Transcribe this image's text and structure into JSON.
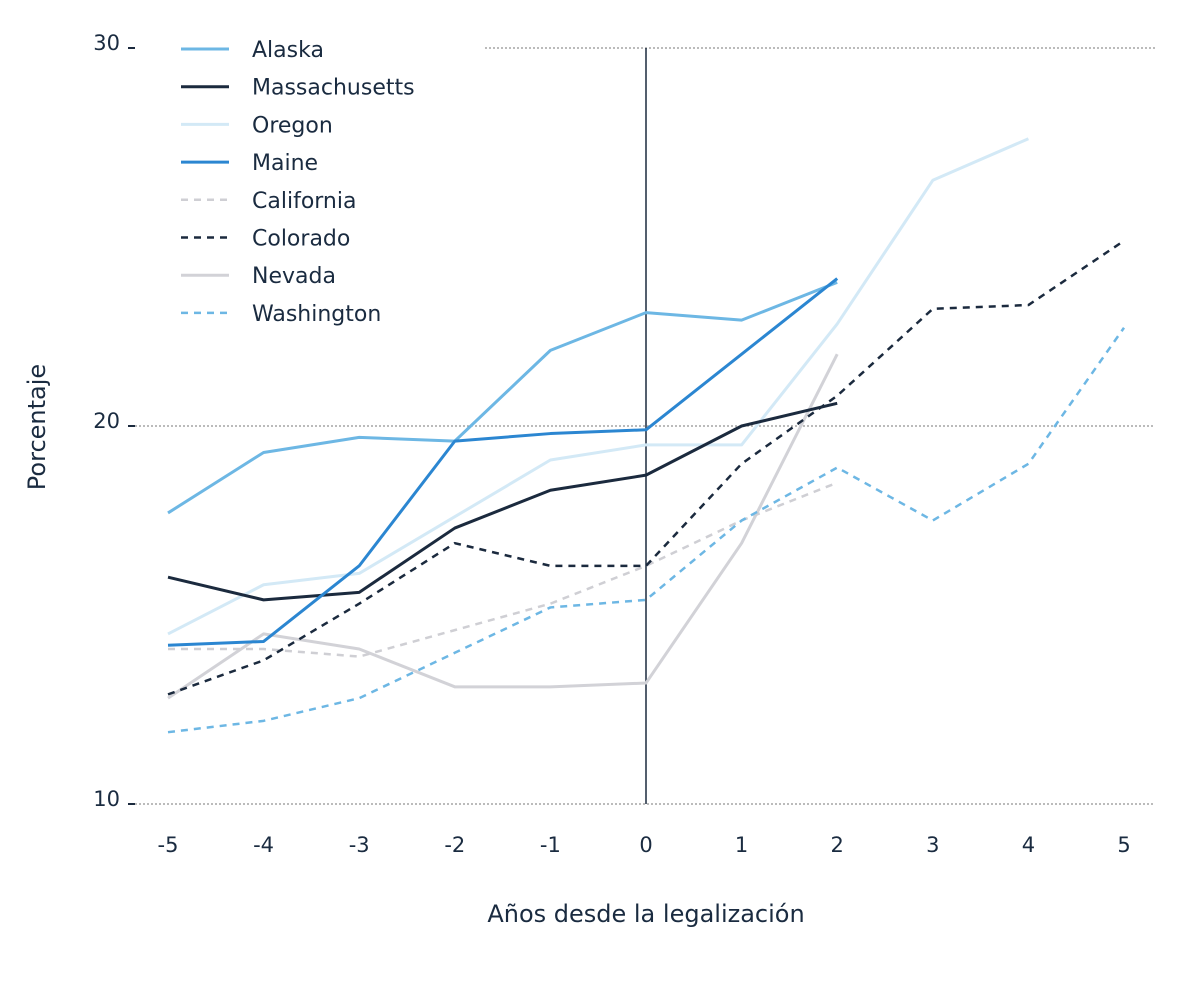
{
  "chart_data": {
    "type": "line",
    "title": "",
    "xlabel": "Años desde la legalización",
    "ylabel": "Porcentaje",
    "x": [
      -5,
      -4,
      -3,
      -2,
      -1,
      0,
      1,
      2,
      3,
      4,
      5
    ],
    "x_tick_labels": [
      "-5",
      "-4",
      "-3",
      "-2",
      "-1",
      "0",
      "1",
      "2",
      "3",
      "4",
      "5"
    ],
    "y_ticks": [
      30,
      20,
      10
    ],
    "y_tick_labels": [
      "30",
      "20",
      "10"
    ],
    "ylim": [
      10,
      30
    ],
    "xlim": [
      -5,
      5
    ],
    "grid": "horizontal dotted at 10, 20, 30",
    "reference_line_x": 0,
    "legend_position": "top-left",
    "series": [
      {
        "name": "Alaska",
        "color": "#6db7e4",
        "dash": false,
        "values": [
          17.7,
          19.3,
          19.7,
          19.6,
          22.0,
          23.0,
          22.8,
          23.8,
          null,
          null,
          null
        ]
      },
      {
        "name": "Massachusetts",
        "color": "#1b2a3e",
        "dash": false,
        "values": [
          16.0,
          15.4,
          15.6,
          17.3,
          18.3,
          18.7,
          20.0,
          20.6,
          null,
          null,
          null
        ]
      },
      {
        "name": "Oregon",
        "color": "#d3e9f6",
        "dash": false,
        "values": [
          14.5,
          15.8,
          16.1,
          17.6,
          19.1,
          19.5,
          19.5,
          22.7,
          26.5,
          27.6,
          null
        ]
      },
      {
        "name": "Maine",
        "color": "#2b86d1",
        "dash": false,
        "values": [
          14.2,
          14.3,
          16.3,
          19.6,
          19.8,
          19.9,
          21.9,
          23.9,
          null,
          null,
          null
        ]
      },
      {
        "name": "California",
        "color": "#cfcfd4",
        "dash": true,
        "values": [
          14.1,
          14.1,
          13.9,
          14.6,
          15.3,
          16.3,
          17.5,
          18.5,
          null,
          null,
          null
        ]
      },
      {
        "name": "Colorado",
        "color": "#1b2a3e",
        "dash": true,
        "values": [
          12.9,
          13.8,
          15.3,
          16.9,
          16.3,
          16.3,
          19.0,
          20.8,
          23.1,
          23.2,
          24.9
        ]
      },
      {
        "name": "Nevada",
        "color": "#d2d2d7",
        "dash": false,
        "values": [
          12.8,
          14.5,
          14.1,
          13.1,
          13.1,
          13.2,
          16.9,
          21.9,
          null,
          null,
          null
        ]
      },
      {
        "name": "Washington",
        "color": "#6db7e4",
        "dash": true,
        "values": [
          11.9,
          12.2,
          12.8,
          14.0,
          15.2,
          15.4,
          17.5,
          18.9,
          17.5,
          19.0,
          22.6
        ]
      }
    ]
  }
}
